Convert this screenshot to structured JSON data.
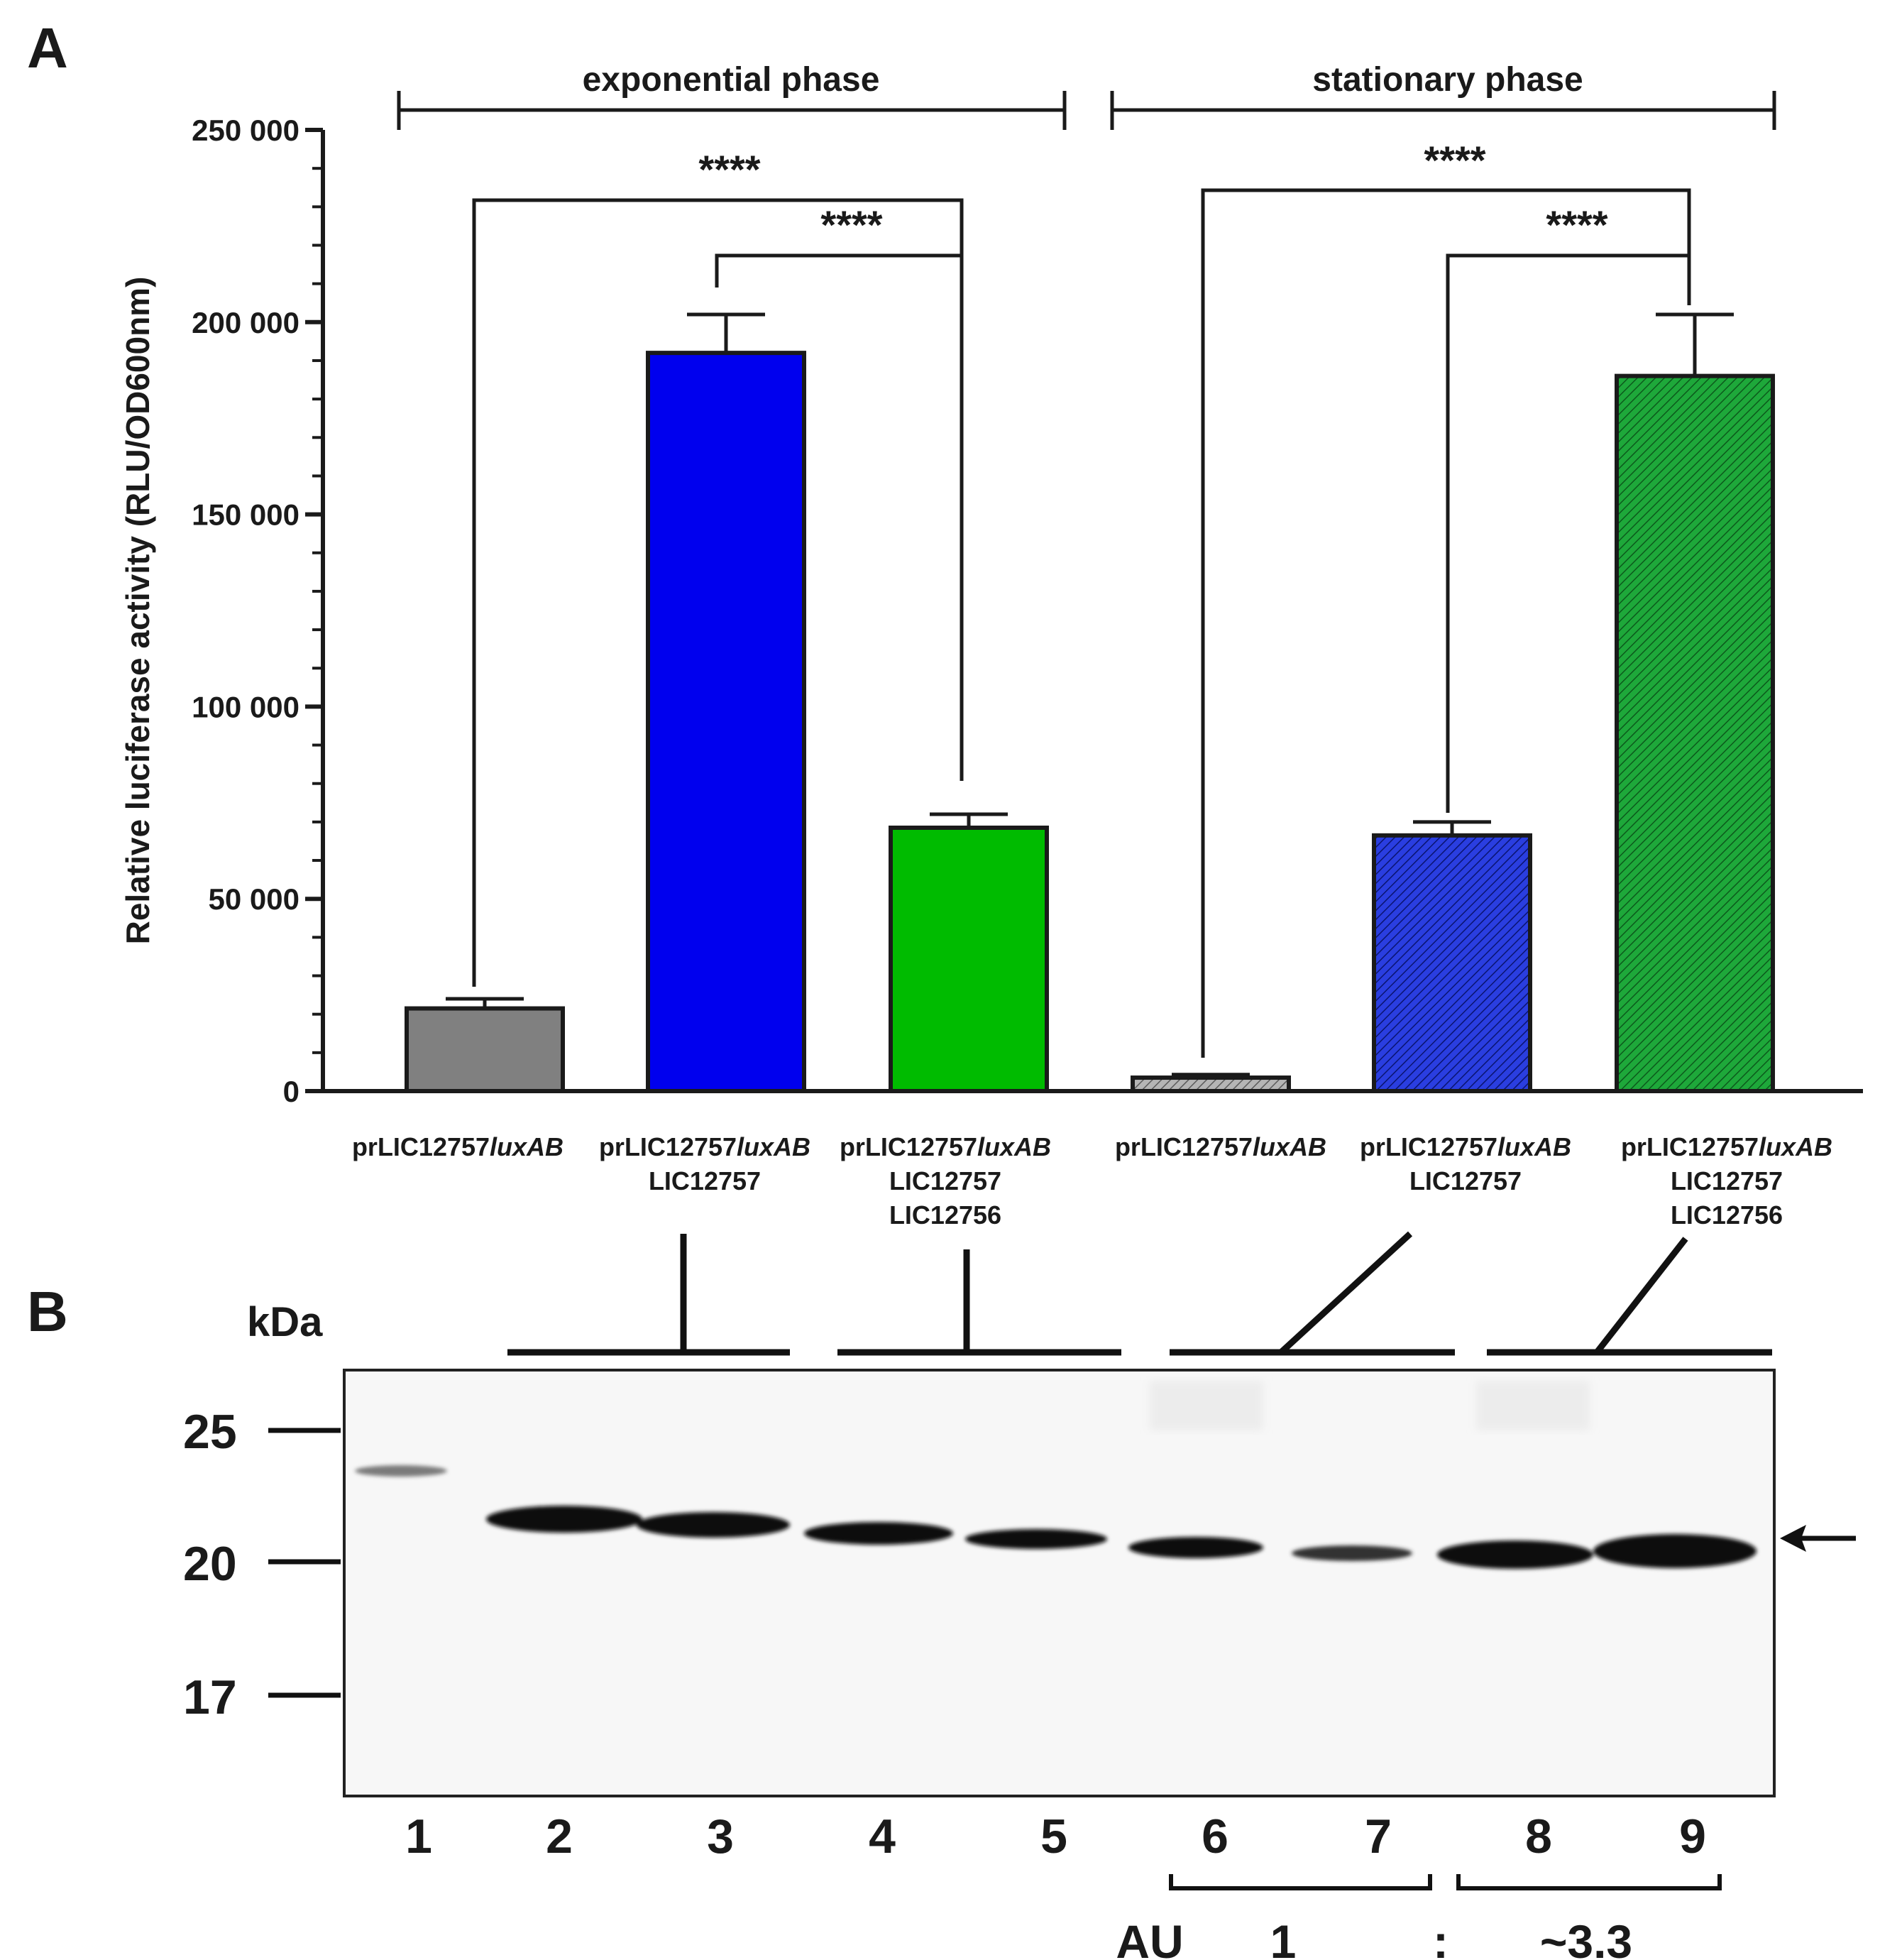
{
  "panelA": {
    "label": "A",
    "phases": [
      "exponential phase",
      "stationary phase"
    ],
    "yaxis_title": "Relative luciferase activity (RLU/OD600nm)",
    "significance": [
      "****",
      "****",
      "****",
      "****"
    ]
  },
  "chart_data": {
    "type": "bar",
    "title": "",
    "xlabel": "",
    "ylabel": "Relative luciferase activity (RLU/OD600nm)",
    "ylim": [
      0,
      250000
    ],
    "yticks": [
      0,
      50000,
      100000,
      150000,
      200000,
      250000
    ],
    "ytick_labels": [
      "0",
      "50 000",
      "100 000",
      "150 000",
      "200 000",
      "250 000"
    ],
    "categories": [
      {
        "line1": "prLIC12757",
        "italic": "luxAB",
        "line2": "",
        "line3": ""
      },
      {
        "line1": "prLIC12757",
        "italic": "luxAB",
        "line2": "LIC12757",
        "line3": ""
      },
      {
        "line1": "prLIC12757",
        "italic": "luxAB",
        "line2": "LIC12757",
        "line3": "LIC12756"
      },
      {
        "line1": "prLIC12757",
        "italic": "luxAB",
        "line2": "",
        "line3": ""
      },
      {
        "line1": "prLIC12757",
        "italic": "luxAB",
        "line2": "LIC12757",
        "line3": ""
      },
      {
        "line1": "prLIC12757",
        "italic": "luxAB",
        "line2": "LIC12757",
        "line3": "LIC12756"
      }
    ],
    "values": [
      21500,
      192000,
      68500,
      3500,
      66500,
      186000
    ],
    "errors": [
      2500,
      10000,
      3500,
      800,
      3500,
      16000
    ],
    "phase": [
      "exponential",
      "exponential",
      "exponential",
      "stationary",
      "stationary",
      "stationary"
    ],
    "colors": [
      "#808080",
      "#0000ee",
      "#00bb00",
      "#d0d0d0",
      "#1a2ecc",
      "#189a30"
    ],
    "hatched": [
      false,
      false,
      false,
      true,
      true,
      true
    ],
    "comparisons": [
      {
        "from": 0,
        "to": 2,
        "label": "****"
      },
      {
        "from": 1,
        "to": 2,
        "label": "****"
      },
      {
        "from": 3,
        "to": 5,
        "label": "****"
      },
      {
        "from": 4,
        "to": 5,
        "label": "****"
      }
    ]
  },
  "panelB": {
    "label": "B",
    "unit": "kDa",
    "markers": [
      "25",
      "20",
      "17"
    ],
    "lanes": [
      "1",
      "2",
      "3",
      "4",
      "5",
      "6",
      "7",
      "8",
      "9"
    ],
    "au_label": "AU",
    "ratio_left": "1",
    "ratio_sep": ":",
    "ratio_right": "~3.3",
    "arrow": "←"
  }
}
